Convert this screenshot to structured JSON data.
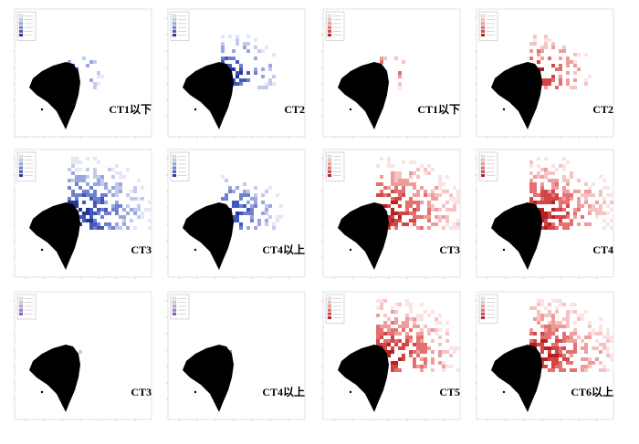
{
  "figure": {
    "panels": [
      {
        "id": "p1",
        "label": "CT1以下",
        "palette": "blue",
        "density": "low"
      },
      {
        "id": "p2",
        "label": "CT2",
        "palette": "blue",
        "density": "mid"
      },
      {
        "id": "p3",
        "label": "CT1以下",
        "palette": "red",
        "density": "low"
      },
      {
        "id": "p4",
        "label": "CT2",
        "palette": "red",
        "density": "mid"
      },
      {
        "id": "p5",
        "label": "CT3",
        "palette": "blue",
        "density": "high"
      },
      {
        "id": "p6",
        "label": "CT4以上",
        "palette": "blue",
        "density": "mid"
      },
      {
        "id": "p7",
        "label": "CT3",
        "palette": "red",
        "density": "high"
      },
      {
        "id": "p8",
        "label": "CT4",
        "palette": "red",
        "density": "high"
      },
      {
        "id": "p9",
        "label": "CT3",
        "palette": "purple",
        "density": "tiny"
      },
      {
        "id": "p10",
        "label": "CT4以上",
        "palette": "purple",
        "density": "tiny"
      },
      {
        "id": "p11",
        "label": "CT5",
        "palette": "red",
        "density": "high"
      },
      {
        "id": "p12",
        "label": "CT6以上",
        "palette": "red",
        "density": "high"
      }
    ],
    "colors": {
      "blue": [
        "#e3e7f6",
        "#c2cbee",
        "#9aa7df",
        "#6f80cf",
        "#4257b8",
        "#22369b"
      ],
      "red": [
        "#fbe3e3",
        "#f6c3c3",
        "#ee9d9d",
        "#e47070",
        "#d54545",
        "#b52222"
      ],
      "purple": [
        "#ece2f4",
        "#d8c4eb",
        "#bfa0de",
        "#a37bcc",
        "#8659b8"
      ],
      "land": "#000000"
    }
  }
}
